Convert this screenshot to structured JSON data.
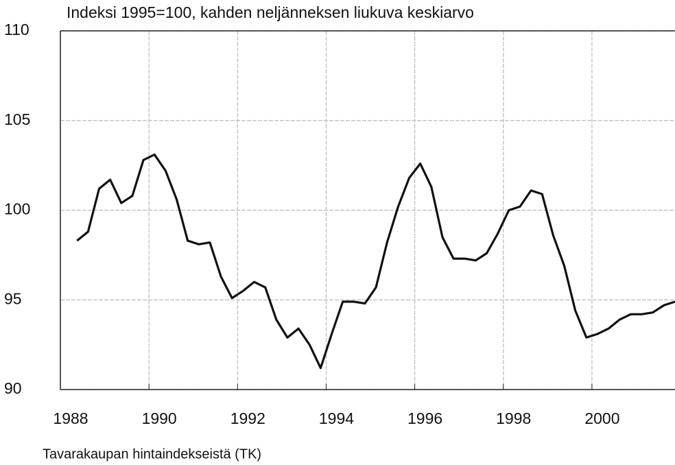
{
  "chart_data": {
    "type": "line",
    "title": "Indeksi 1995=100, kahden neljänneksen liukuva keskiarvo",
    "source": "Tavarakaupan hintaindekseistä (TK)",
    "x": [
      1988.375,
      1988.625,
      1988.875,
      1989.125,
      1989.375,
      1989.625,
      1989.875,
      1990.125,
      1990.375,
      1990.625,
      1990.875,
      1991.125,
      1991.375,
      1991.625,
      1991.875,
      1992.125,
      1992.375,
      1992.625,
      1992.875,
      1993.125,
      1993.375,
      1993.625,
      1993.875,
      1994.125,
      1994.375,
      1994.625,
      1994.875,
      1995.125,
      1995.375,
      1995.625,
      1995.875,
      1996.125,
      1996.375,
      1996.625,
      1996.875,
      1997.125,
      1997.375,
      1997.625,
      1997.875,
      1998.125,
      1998.375,
      1998.625,
      1998.875,
      1999.125,
      1999.375,
      1999.625,
      1999.875,
      2000.125,
      2000.375,
      2000.625,
      2000.875,
      2001.125,
      2001.375,
      2001.625,
      2001.875
    ],
    "series": [
      {
        "color": "#111111",
        "values": [
          98.3,
          98.8,
          101.2,
          101.7,
          100.4,
          100.8,
          102.8,
          103.1,
          102.2,
          100.6,
          98.3,
          98.1,
          98.2,
          96.3,
          95.1,
          95.5,
          96.0,
          95.7,
          93.9,
          92.9,
          93.4,
          92.5,
          91.2,
          93.1,
          94.9,
          94.9,
          94.8,
          95.7,
          98.2,
          100.2,
          101.8,
          102.6,
          101.3,
          98.5,
          97.3,
          97.3,
          97.2,
          97.6,
          98.7,
          100.0,
          100.2,
          101.1,
          100.9,
          98.6,
          96.9,
          94.4,
          92.9,
          93.1,
          93.4,
          93.9,
          94.2,
          94.2,
          94.3,
          94.7,
          94.9
        ]
      }
    ],
    "xlim": [
      1988,
      2001.875
    ],
    "xticks": [
      1988,
      1990,
      1992,
      1994,
      1996,
      1998,
      2000
    ],
    "ylim": [
      90,
      110
    ],
    "yticks": [
      90,
      95,
      100,
      105,
      110
    ],
    "grid": true
  }
}
